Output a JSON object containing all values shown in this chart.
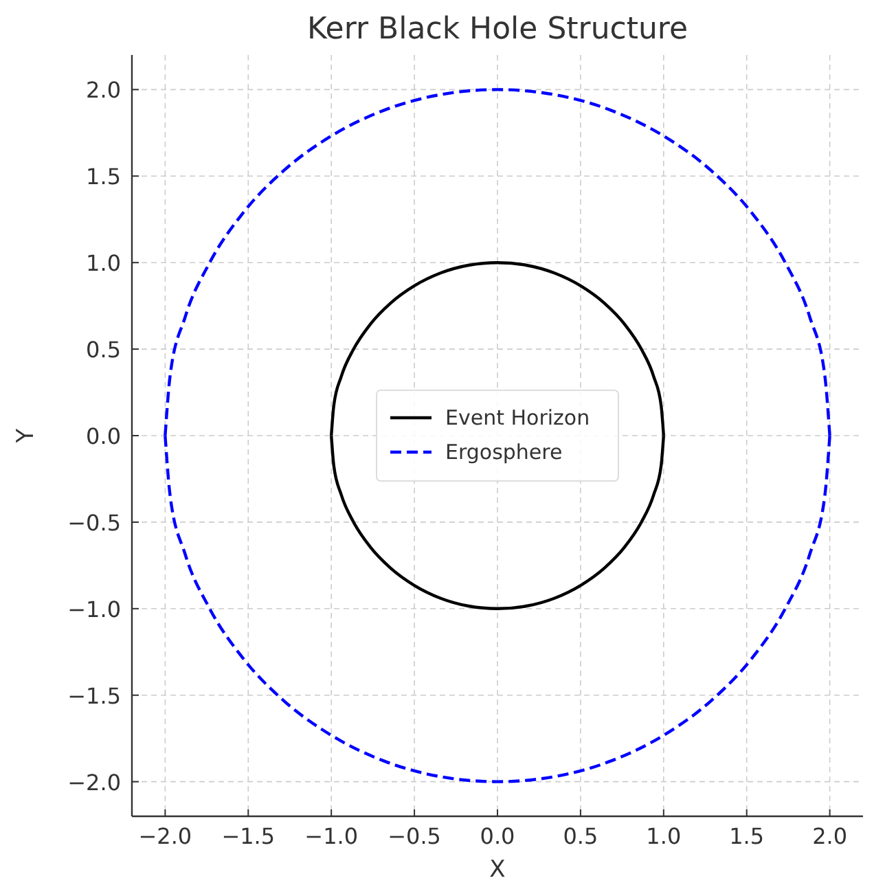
{
  "chart_data": {
    "type": "line",
    "title": "Kerr Black Hole Structure",
    "xlabel": "X",
    "ylabel": "Y",
    "xlim": [
      -2.2,
      2.2
    ],
    "ylim": [
      -2.2,
      2.2
    ],
    "xticks": [
      {
        "value": -2,
        "label": "−2.0"
      },
      {
        "value": -1.5,
        "label": "−1.5"
      },
      {
        "value": -1,
        "label": "−1.0"
      },
      {
        "value": -0.5,
        "label": "−0.5"
      },
      {
        "value": 0,
        "label": "0.0"
      },
      {
        "value": 0.5,
        "label": "0.5"
      },
      {
        "value": 1,
        "label": "1.0"
      },
      {
        "value": 1.5,
        "label": "1.5"
      },
      {
        "value": 2,
        "label": "2.0"
      }
    ],
    "yticks": [
      {
        "value": -2,
        "label": "−2.0"
      },
      {
        "value": -1.5,
        "label": "−1.5"
      },
      {
        "value": -1,
        "label": "−1.0"
      },
      {
        "value": -0.5,
        "label": "−0.5"
      },
      {
        "value": 0,
        "label": "0.0"
      },
      {
        "value": 0.5,
        "label": "0.5"
      },
      {
        "value": 1,
        "label": "1.0"
      },
      {
        "value": 1.5,
        "label": "1.5"
      },
      {
        "value": 2,
        "label": "2.0"
      }
    ],
    "grid": true,
    "legend": "center",
    "marker": "none",
    "series": [
      {
        "name": "Event Horizon",
        "color": "#000000",
        "line_style": "solid",
        "x": [
          -1,
          -0.985,
          -0.94,
          -0.866,
          -0.766,
          -0.643,
          -0.5,
          -0.342,
          -0.174,
          0,
          0.174,
          0.342,
          0.5,
          0.643,
          0.766,
          0.866,
          0.94,
          0.985,
          1,
          0,
          -1,
          -0.985,
          -0.94,
          -0.866,
          -0.766,
          -0.643,
          -0.5,
          -0.342,
          -0.174,
          0,
          0.174,
          0.342,
          0.5,
          0.643,
          0.766,
          0.866,
          0.94,
          0.985,
          1
        ],
        "values": [
          0,
          0.174,
          0.342,
          0.5,
          0.643,
          0.766,
          0.866,
          0.94,
          0.985,
          1,
          0.985,
          0.94,
          0.866,
          0.766,
          0.643,
          0.5,
          0.342,
          0.174,
          0,
          null,
          0,
          -0.174,
          -0.342,
          -0.5,
          -0.643,
          -0.766,
          -0.866,
          -0.94,
          -0.985,
          -1,
          -0.985,
          -0.94,
          -0.866,
          -0.766,
          -0.643,
          -0.5,
          -0.342,
          -0.174,
          0
        ]
      },
      {
        "name": "Ergosphere",
        "color": "#0000ff",
        "line_style": "dashed",
        "x": [
          -2,
          -1.97,
          -1.88,
          -1.732,
          -1.532,
          -1.286,
          -1,
          -0.684,
          -0.348,
          0,
          0.348,
          0.684,
          1,
          1.286,
          1.532,
          1.732,
          1.88,
          1.97,
          2,
          0,
          -2,
          -1.97,
          -1.88,
          -1.732,
          -1.532,
          -1.286,
          -1,
          -0.684,
          -0.348,
          0,
          0.348,
          0.684,
          1,
          1.286,
          1.532,
          1.732,
          1.88,
          1.97,
          2
        ],
        "values": [
          0,
          0.348,
          0.684,
          1,
          1.286,
          1.532,
          1.732,
          1.88,
          1.97,
          2,
          1.97,
          1.88,
          1.732,
          1.532,
          1.286,
          1,
          0.684,
          0.348,
          0,
          null,
          0,
          -0.348,
          -0.684,
          -1,
          -1.286,
          -1.532,
          -1.732,
          -1.88,
          -1.97,
          -2,
          -1.97,
          -1.88,
          -1.732,
          -1.532,
          -1.286,
          -1,
          -0.684,
          -0.348,
          0
        ]
      }
    ]
  }
}
